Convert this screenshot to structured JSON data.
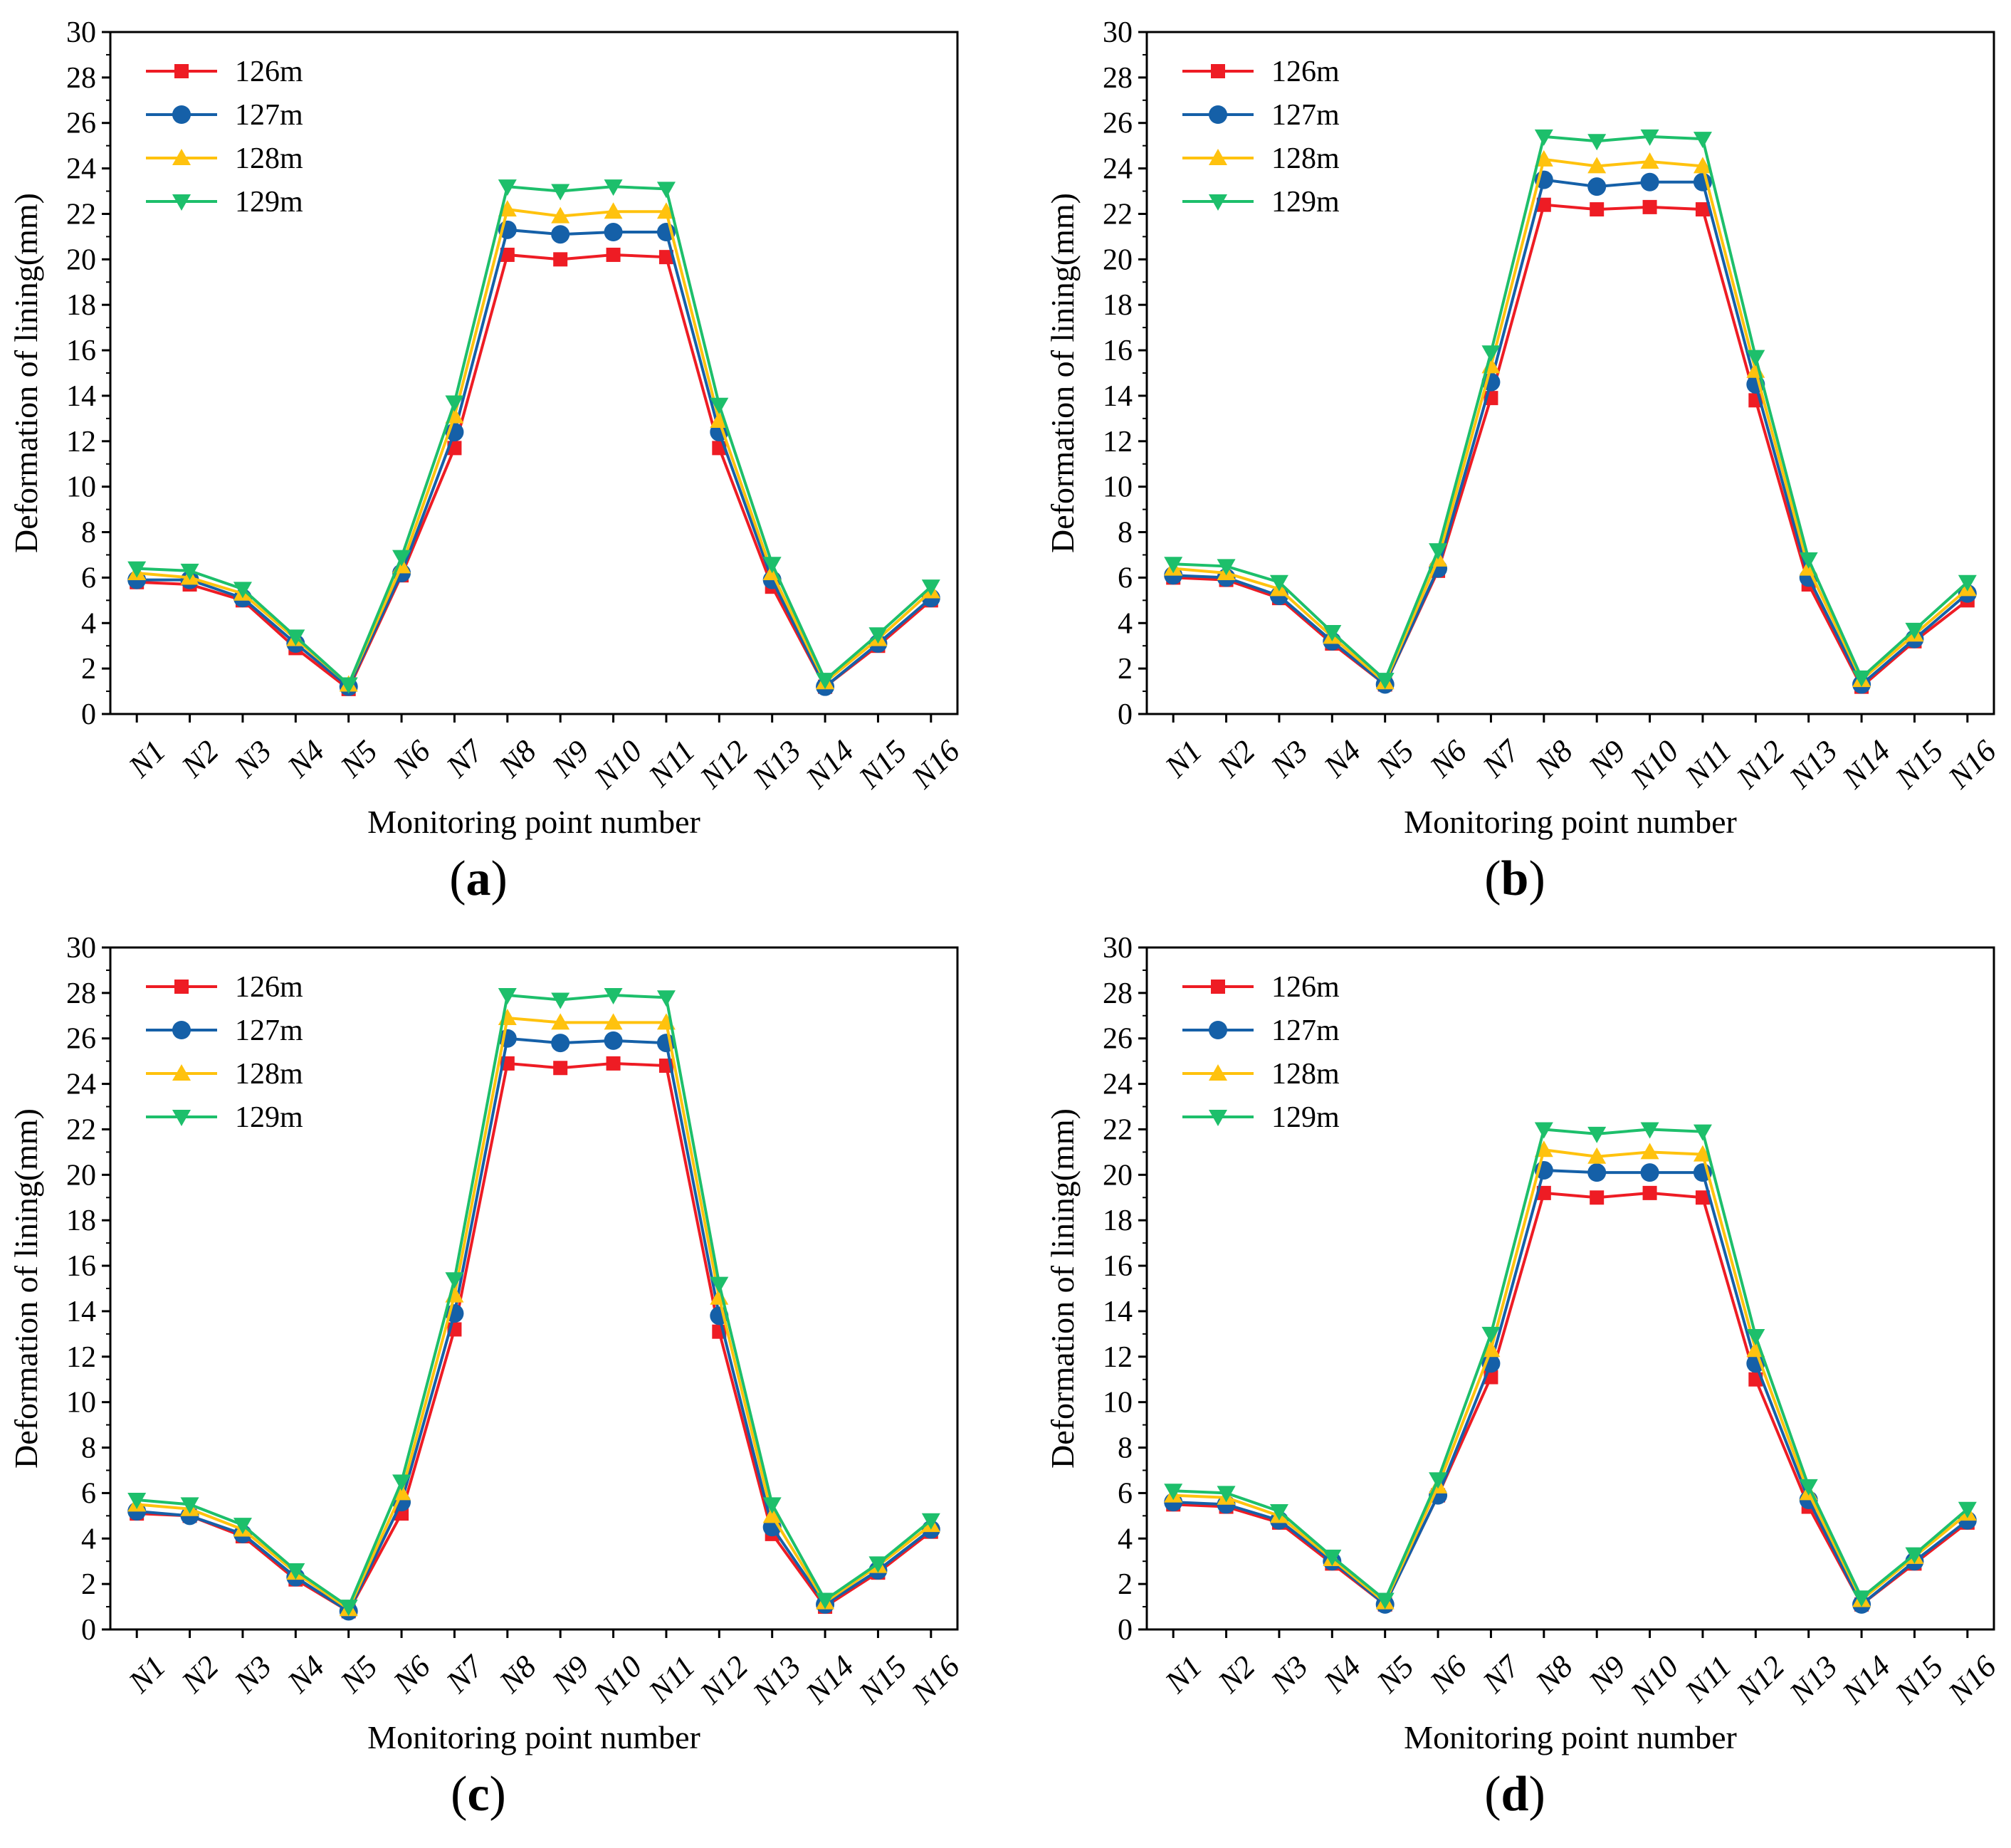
{
  "figure": {
    "x_categories": [
      "N1",
      "N2",
      "N3",
      "N4",
      "N5",
      "N6",
      "N7",
      "N8",
      "N9",
      "N10",
      "N11",
      "N12",
      "N13",
      "N14",
      "N15",
      "N16"
    ],
    "series_style": [
      {
        "name": "126m",
        "color": "#ee1c24",
        "marker": "square"
      },
      {
        "name": "127m",
        "color": "#1560a8",
        "marker": "circle"
      },
      {
        "name": "128m",
        "color": "#ffc20e",
        "marker": "triangle-up"
      },
      {
        "name": "129m",
        "color": "#1dbf6b",
        "marker": "triangle-down"
      }
    ]
  },
  "chart_data": [
    {
      "type": "line",
      "caption_label": "a",
      "title": "",
      "xlabel": "Monitoring point number",
      "ylabel": "Deformation of  lining(mm)",
      "ylim": [
        0,
        30
      ],
      "yticks": [
        0,
        2,
        4,
        6,
        8,
        10,
        12,
        14,
        16,
        18,
        20,
        22,
        24,
        26,
        28,
        30
      ],
      "categories": [
        "N1",
        "N2",
        "N3",
        "N4",
        "N5",
        "N6",
        "N7",
        "N8",
        "N9",
        "N10",
        "N11",
        "N12",
        "N13",
        "N14",
        "N15",
        "N16"
      ],
      "legend_position": "top-left",
      "series": [
        {
          "name": "126m",
          "values": [
            5.8,
            5.7,
            5.0,
            2.9,
            1.1,
            6.1,
            11.7,
            20.2,
            20.0,
            20.2,
            20.1,
            11.7,
            5.6,
            1.2,
            3.0,
            5.0
          ]
        },
        {
          "name": "127m",
          "values": [
            5.9,
            5.9,
            5.1,
            3.1,
            1.2,
            6.2,
            12.4,
            21.3,
            21.1,
            21.2,
            21.2,
            12.4,
            5.9,
            1.2,
            3.1,
            5.1
          ]
        },
        {
          "name": "128m",
          "values": [
            6.2,
            6.0,
            5.3,
            3.3,
            1.3,
            6.5,
            13.1,
            22.2,
            21.9,
            22.1,
            22.1,
            12.9,
            6.2,
            1.4,
            3.3,
            5.4
          ]
        },
        {
          "name": "129m",
          "values": [
            6.4,
            6.3,
            5.5,
            3.4,
            1.3,
            6.9,
            13.7,
            23.2,
            23.0,
            23.2,
            23.1,
            13.6,
            6.6,
            1.5,
            3.5,
            5.6
          ]
        }
      ]
    },
    {
      "type": "line",
      "caption_label": "b",
      "title": "",
      "xlabel": "Monitoring point number",
      "ylabel": "Deformation of  lining(mm)",
      "ylim": [
        0,
        30
      ],
      "yticks": [
        0,
        2,
        4,
        6,
        8,
        10,
        12,
        14,
        16,
        18,
        20,
        22,
        24,
        26,
        28,
        30
      ],
      "categories": [
        "N1",
        "N2",
        "N3",
        "N4",
        "N5",
        "N6",
        "N7",
        "N8",
        "N9",
        "N10",
        "N11",
        "N12",
        "N13",
        "N14",
        "N15",
        "N16"
      ],
      "legend_position": "top-left",
      "series": [
        {
          "name": "126m",
          "values": [
            6.0,
            5.9,
            5.1,
            3.1,
            1.3,
            6.3,
            13.9,
            22.4,
            22.2,
            22.3,
            22.2,
            13.8,
            5.7,
            1.2,
            3.2,
            5.0
          ]
        },
        {
          "name": "127m",
          "values": [
            6.1,
            6.0,
            5.2,
            3.2,
            1.3,
            6.4,
            14.6,
            23.5,
            23.2,
            23.4,
            23.4,
            14.5,
            6.0,
            1.3,
            3.3,
            5.3
          ]
        },
        {
          "name": "128m",
          "values": [
            6.4,
            6.2,
            5.5,
            3.4,
            1.4,
            6.8,
            15.3,
            24.4,
            24.1,
            24.3,
            24.1,
            15.1,
            6.4,
            1.5,
            3.5,
            5.5
          ]
        },
        {
          "name": "129m",
          "values": [
            6.6,
            6.5,
            5.8,
            3.6,
            1.5,
            7.2,
            15.9,
            25.4,
            25.2,
            25.4,
            25.3,
            15.7,
            6.8,
            1.6,
            3.7,
            5.8
          ]
        }
      ]
    },
    {
      "type": "line",
      "caption_label": "c",
      "title": "",
      "xlabel": "Monitoring point number",
      "ylabel": "Deformation of  lining(mm)",
      "ylim": [
        0,
        30
      ],
      "yticks": [
        0,
        2,
        4,
        6,
        8,
        10,
        12,
        14,
        16,
        18,
        20,
        22,
        24,
        26,
        28,
        30
      ],
      "categories": [
        "N1",
        "N2",
        "N3",
        "N4",
        "N5",
        "N6",
        "N7",
        "N8",
        "N9",
        "N10",
        "N11",
        "N12",
        "N13",
        "N14",
        "N15",
        "N16"
      ],
      "legend_position": "top-left",
      "series": [
        {
          "name": "126m",
          "values": [
            5.1,
            5.0,
            4.1,
            2.2,
            0.8,
            5.1,
            13.2,
            24.9,
            24.7,
            24.9,
            24.8,
            13.1,
            4.2,
            1.0,
            2.5,
            4.3
          ]
        },
        {
          "name": "127m",
          "values": [
            5.2,
            5.0,
            4.2,
            2.3,
            0.8,
            5.6,
            13.9,
            26.0,
            25.8,
            25.9,
            25.8,
            13.8,
            4.5,
            1.1,
            2.6,
            4.4
          ]
        },
        {
          "name": "128m",
          "values": [
            5.5,
            5.3,
            4.4,
            2.5,
            0.9,
            6.0,
            14.7,
            26.9,
            26.7,
            26.7,
            26.7,
            14.6,
            5.0,
            1.2,
            2.8,
            4.6
          ]
        },
        {
          "name": "129m",
          "values": [
            5.7,
            5.5,
            4.6,
            2.6,
            1.0,
            6.5,
            15.4,
            27.9,
            27.7,
            27.9,
            27.8,
            15.2,
            5.5,
            1.3,
            2.9,
            4.8
          ]
        }
      ]
    },
    {
      "type": "line",
      "caption_label": "d",
      "title": "",
      "xlabel": "Monitoring point number",
      "ylabel": "Deformation of  lining(mm)",
      "ylim": [
        0,
        30
      ],
      "yticks": [
        0,
        2,
        4,
        6,
        8,
        10,
        12,
        14,
        16,
        18,
        20,
        22,
        24,
        26,
        28,
        30
      ],
      "categories": [
        "N1",
        "N2",
        "N3",
        "N4",
        "N5",
        "N6",
        "N7",
        "N8",
        "N9",
        "N10",
        "N11",
        "N12",
        "N13",
        "N14",
        "N15",
        "N16"
      ],
      "legend_position": "top-left",
      "series": [
        {
          "name": "126m",
          "values": [
            5.5,
            5.4,
            4.7,
            2.9,
            1.1,
            5.9,
            11.1,
            19.2,
            19.0,
            19.2,
            19.0,
            11.0,
            5.4,
            1.1,
            2.9,
            4.7
          ]
        },
        {
          "name": "127m",
          "values": [
            5.6,
            5.5,
            4.8,
            3.0,
            1.1,
            5.9,
            11.7,
            20.2,
            20.1,
            20.1,
            20.1,
            11.7,
            5.7,
            1.1,
            3.0,
            4.8
          ]
        },
        {
          "name": "128m",
          "values": [
            5.9,
            5.8,
            5.0,
            3.1,
            1.2,
            6.3,
            12.3,
            21.1,
            20.8,
            21.0,
            20.9,
            12.3,
            6.0,
            1.3,
            3.2,
            5.1
          ]
        },
        {
          "name": "129m",
          "values": [
            6.1,
            6.0,
            5.2,
            3.2,
            1.3,
            6.6,
            13.0,
            22.0,
            21.8,
            22.0,
            21.9,
            12.9,
            6.3,
            1.4,
            3.3,
            5.3
          ]
        }
      ]
    }
  ]
}
